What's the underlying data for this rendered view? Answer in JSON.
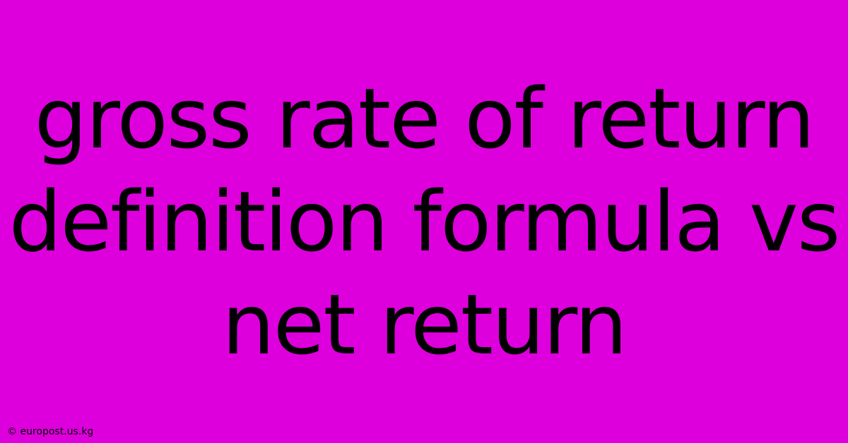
{
  "infographic": {
    "type": "infographic",
    "background_color": "#dd00dd",
    "text_color": "#000000",
    "main_text": "gross rate of return definition formula vs net return",
    "main_fontsize": 118,
    "main_lineheight": 1.24,
    "attribution": "© europost.us.kg",
    "attribution_fontsize": 14,
    "attribution_color": "#000000"
  }
}
